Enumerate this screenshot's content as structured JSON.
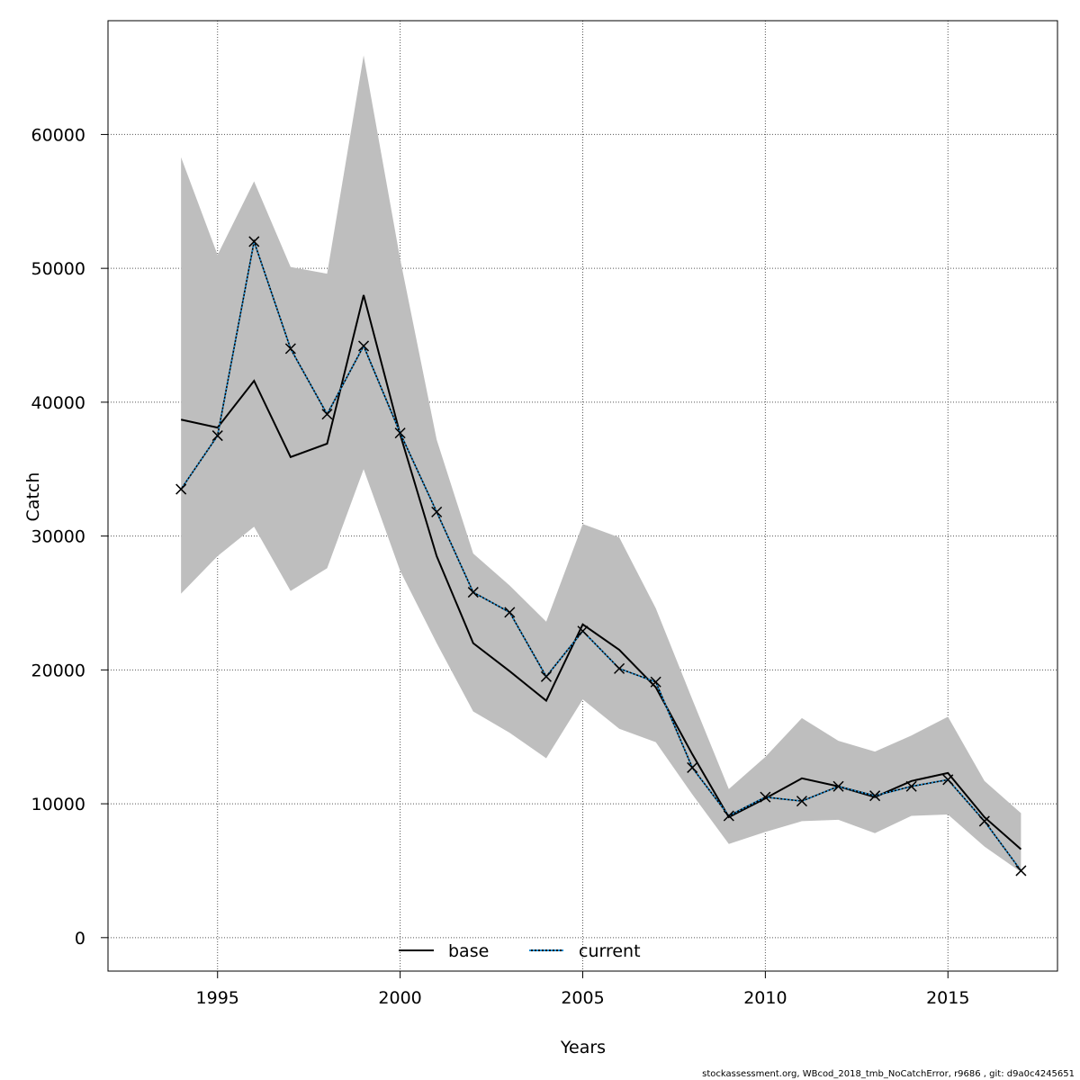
{
  "chart_data": {
    "type": "line",
    "title": "",
    "xlabel": "Years",
    "ylabel": "Catch",
    "xlim": [
      1992,
      2018
    ],
    "ylim": [
      -2500,
      68500
    ],
    "xticks": [
      1995,
      2000,
      2005,
      2010,
      2015
    ],
    "yticks": [
      0,
      10000,
      20000,
      30000,
      40000,
      50000,
      60000
    ],
    "grid": true,
    "legend_position": "bottom-center",
    "x": [
      1994,
      1995,
      1996,
      1997,
      1998,
      1999,
      2000,
      2001,
      2002,
      2003,
      2004,
      2005,
      2006,
      2007,
      2008,
      2009,
      2010,
      2011,
      2012,
      2013,
      2014,
      2015,
      2016,
      2017
    ],
    "band": {
      "color": "#bebebe",
      "upper": [
        58300,
        51000,
        56500,
        50100,
        49600,
        65900,
        50700,
        37200,
        28700,
        26300,
        23600,
        30900,
        29900,
        24600,
        17800,
        11100,
        13500,
        16400,
        14700,
        13900,
        15100,
        16500,
        11700,
        9300
      ],
      "lower": [
        25700,
        28500,
        30700,
        25900,
        27600,
        35000,
        27400,
        22000,
        16900,
        15300,
        13400,
        17800,
        15600,
        14600,
        10700,
        7000,
        7900,
        8700,
        8800,
        7800,
        9100,
        9200,
        6800,
        4900
      ]
    },
    "series": [
      {
        "name": "base",
        "color": "#000000",
        "style": "solid",
        "values": [
          38700,
          38100,
          41600,
          35900,
          36900,
          48000,
          37600,
          28500,
          22000,
          19900,
          17700,
          23400,
          21500,
          18700,
          13700,
          9000,
          10400,
          11900,
          11300,
          10500,
          11700,
          12300,
          9000,
          6600
        ]
      },
      {
        "name": "current",
        "color": "#1b8fd6",
        "style": "dotted",
        "marker": "x",
        "values": [
          33500,
          37500,
          52000,
          44000,
          39100,
          44200,
          37700,
          31800,
          25800,
          24300,
          19500,
          22900,
          20100,
          19100,
          12700,
          9100,
          10500,
          10200,
          11300,
          10600,
          11300,
          11800,
          8700,
          5000
        ]
      }
    ]
  },
  "footer": "stockassessment.org, WBcod_2018_tmb_NoCatchError, r9686 , git: d9a0c4245651"
}
